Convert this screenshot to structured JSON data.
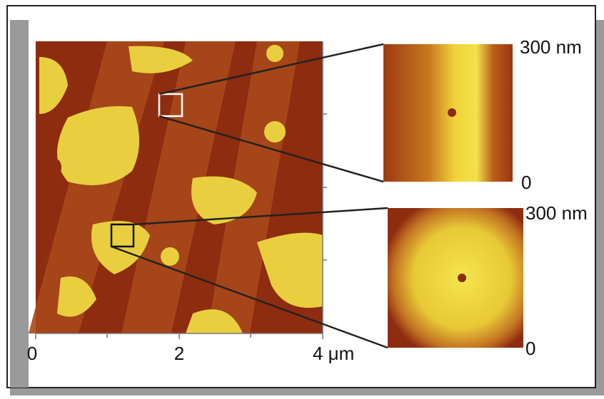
{
  "main_image": {
    "x_labels": [
      "0",
      "2",
      "4 μm"
    ]
  },
  "insets": [
    {
      "top_label": "300 nm",
      "bottom_label": "0"
    },
    {
      "top_label": "300 nm",
      "bottom_label": "0"
    }
  ]
}
